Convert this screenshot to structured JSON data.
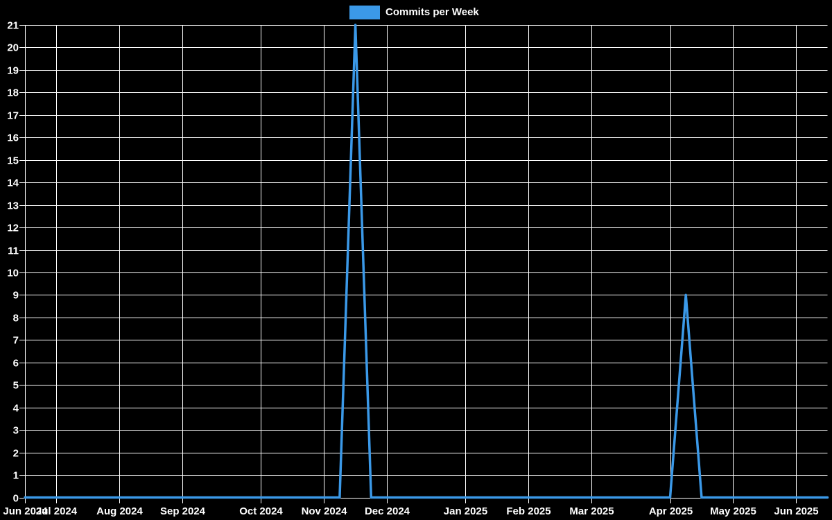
{
  "legend": {
    "label": "Commits per Week",
    "position": "top-center"
  },
  "chart_data": {
    "type": "line",
    "title": "Commits per Week",
    "xlabel": "",
    "ylabel": "",
    "grid": true,
    "legend_position": "top-center",
    "ylim": [
      0,
      21
    ],
    "y_axis": {
      "min": 0,
      "max": 21,
      "tick_step": 1,
      "tick_labels": [
        "0",
        "1",
        "2",
        "3",
        "4",
        "5",
        "6",
        "7",
        "8",
        "9",
        "10",
        "11",
        "12",
        "13",
        "14",
        "15",
        "16",
        "17",
        "18",
        "19",
        "20",
        "21"
      ]
    },
    "x_axis": {
      "unit": "week",
      "week_count": 52,
      "month_ticks": [
        {
          "label": "Jun 2024",
          "week": 0
        },
        {
          "label": "Jul 2024",
          "week": 2
        },
        {
          "label": "Aug 2024",
          "week": 6
        },
        {
          "label": "Sep 2024",
          "week": 10
        },
        {
          "label": "Oct 2024",
          "week": 15
        },
        {
          "label": "Nov 2024",
          "week": 19
        },
        {
          "label": "Dec 2024",
          "week": 23
        },
        {
          "label": "Jan 2025",
          "week": 28
        },
        {
          "label": "Feb 2025",
          "week": 32
        },
        {
          "label": "Mar 2025",
          "week": 36
        },
        {
          "label": "Apr 2025",
          "week": 41
        },
        {
          "label": "May 2025",
          "week": 45
        },
        {
          "label": "Jun 2025",
          "week": 49
        }
      ]
    },
    "series": [
      {
        "name": "Commits per Week",
        "color": "#3b99e8",
        "values": [
          0,
          0,
          0,
          0,
          0,
          0,
          0,
          0,
          0,
          0,
          0,
          0,
          0,
          0,
          0,
          0,
          0,
          0,
          0,
          0,
          0,
          21,
          0,
          0,
          0,
          0,
          0,
          0,
          0,
          0,
          0,
          0,
          0,
          0,
          0,
          0,
          0,
          0,
          0,
          0,
          0,
          0,
          9,
          0,
          0,
          0,
          0,
          0,
          0,
          0,
          0,
          0
        ]
      }
    ],
    "peaks": [
      {
        "week_index": 21,
        "value": 21,
        "near_tick": "Nov 2024"
      },
      {
        "week_index": 42,
        "value": 9,
        "near_tick": "Apr 2025"
      }
    ],
    "colors": {
      "background": "#000000",
      "grid": "#ffffff",
      "line": "#3b99e8",
      "text": "#ffffff"
    }
  }
}
